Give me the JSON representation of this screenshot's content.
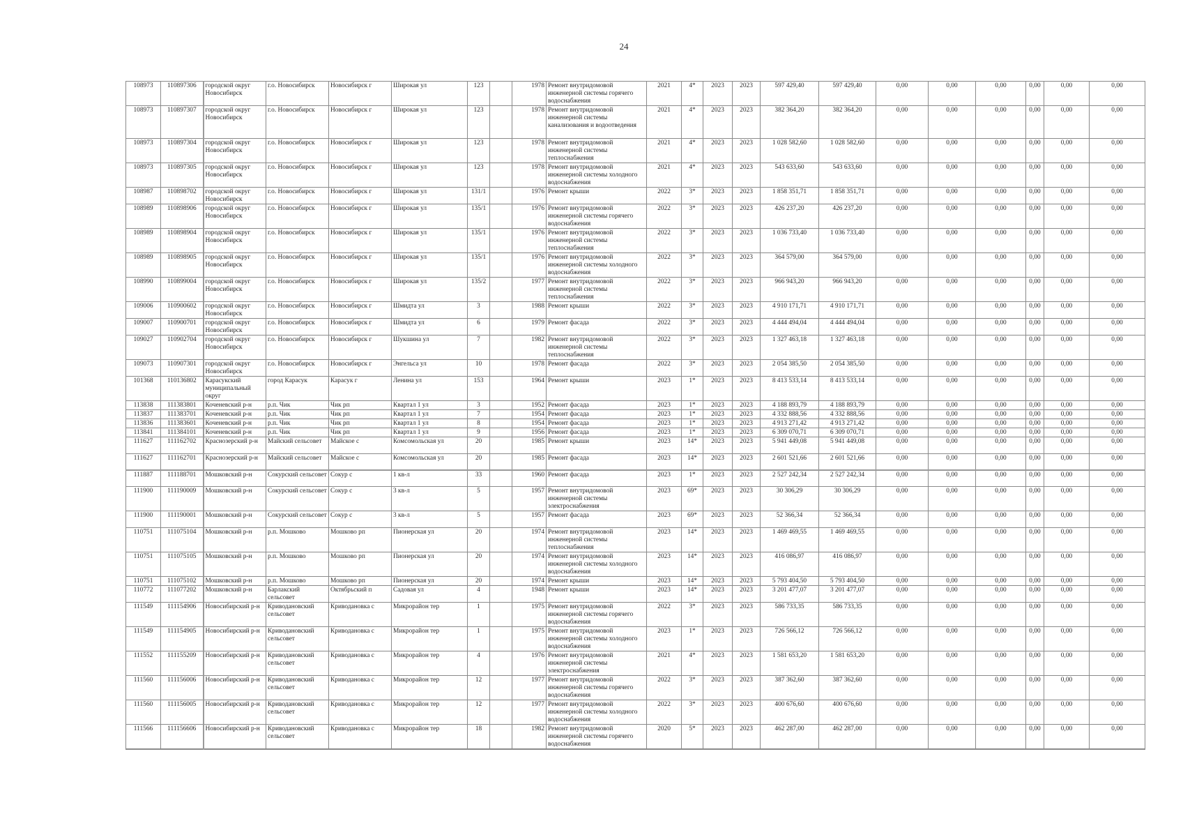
{
  "page_number": "24",
  "rows": [
    [
      "108973",
      "110897306",
      "городской округ Новосибирск",
      "г.о. Новосибирск",
      "Новосибирск г",
      "Широкая ул",
      "123",
      "",
      "1978",
      "Ремонт внутридомовой инженерной системы горячего водоснабжения",
      "2021",
      "4*",
      "2023",
      "2023",
      "597 429,40",
      "597 429,40",
      "0,00",
      "0,00",
      "0,00",
      "0,00",
      "0,00",
      "0,00"
    ],
    [
      "108973",
      "110897307",
      "городской округ Новосибирск",
      "г.о. Новосибирск",
      "Новосибирск г",
      "Широкая ул",
      "123",
      "",
      "1978",
      "Ремонт внутридомовой инженерной системы канализования и водоотведения",
      "2021",
      "4*",
      "2023",
      "2023",
      "382 364,20",
      "382 364,20",
      "0,00",
      "0,00",
      "0,00",
      "0,00",
      "0,00",
      "0,00"
    ],
    [
      "108973",
      "110897304",
      "городской округ Новосибирск",
      "г.о. Новосибирск",
      "Новосибирск г",
      "Широкая ул",
      "123",
      "",
      "1978",
      "Ремонт внутридомовой инженерной системы теплоснабжения",
      "2021",
      "4*",
      "2023",
      "2023",
      "1 028 582,60",
      "1 028 582,60",
      "0,00",
      "0,00",
      "0,00",
      "0,00",
      "0,00",
      "0,00"
    ],
    [
      "108973",
      "110897305",
      "городской округ Новосибирск",
      "г.о. Новосибирск",
      "Новосибирск г",
      "Широкая ул",
      "123",
      "",
      "1978",
      "Ремонт внутридомовой инженерной системы холодного водоснабжения",
      "2021",
      "4*",
      "2023",
      "2023",
      "543 633,60",
      "543 633,60",
      "0,00",
      "0,00",
      "0,00",
      "0,00",
      "0,00",
      "0,00"
    ],
    [
      "108987",
      "110898702",
      "городской округ Новосибирск",
      "г.о. Новосибирск",
      "Новосибирск г",
      "Широкая ул",
      "131/1",
      "",
      "1976",
      "Ремонт крыши",
      "2022",
      "3*",
      "2023",
      "2023",
      "1 858 351,71",
      "1 858 351,71",
      "0,00",
      "0,00",
      "0,00",
      "0,00",
      "0,00",
      "0,00"
    ],
    [
      "108989",
      "110898906",
      "городской округ Новосибирск",
      "г.о. Новосибирск",
      "Новосибирск г",
      "Широкая ул",
      "135/1",
      "",
      "1976",
      "Ремонт внутридомовой инженерной системы горячего водоснабжения",
      "2022",
      "3*",
      "2023",
      "2023",
      "426 237,20",
      "426 237,20",
      "0,00",
      "0,00",
      "0,00",
      "0,00",
      "0,00",
      "0,00"
    ],
    [
      "108989",
      "110898904",
      "городской округ Новосибирск",
      "г.о. Новосибирск",
      "Новосибирск г",
      "Широкая ул",
      "135/1",
      "",
      "1976",
      "Ремонт внутридомовой инженерной системы теплоснабжения",
      "2022",
      "3*",
      "2023",
      "2023",
      "1 036 733,40",
      "1 036 733,40",
      "0,00",
      "0,00",
      "0,00",
      "0,00",
      "0,00",
      "0,00"
    ],
    [
      "108989",
      "110898905",
      "городской округ Новосибирск",
      "г.о. Новосибирск",
      "Новосибирск г",
      "Широкая ул",
      "135/1",
      "",
      "1976",
      "Ремонт внутридомовой инженерной системы холодного водоснабжения",
      "2022",
      "3*",
      "2023",
      "2023",
      "364 579,00",
      "364 579,00",
      "0,00",
      "0,00",
      "0,00",
      "0,00",
      "0,00",
      "0,00"
    ],
    [
      "108990",
      "110899004",
      "городской округ Новосибирск",
      "г.о. Новосибирск",
      "Новосибирск г",
      "Широкая ул",
      "135/2",
      "",
      "1977",
      "Ремонт внутридомовой инженерной системы теплоснабжения",
      "2022",
      "3*",
      "2023",
      "2023",
      "966 943,20",
      "966 943,20",
      "0,00",
      "0,00",
      "0,00",
      "0,00",
      "0,00",
      "0,00"
    ],
    [
      "109006",
      "110900602",
      "городской округ Новосибирск",
      "г.о. Новосибирск",
      "Новосибирск г",
      "Шмидта ул",
      "3",
      "",
      "1988",
      "Ремонт крыши",
      "2022",
      "3*",
      "2023",
      "2023",
      "4 910 171,71",
      "4 910 171,71",
      "0,00",
      "0,00",
      "0,00",
      "0,00",
      "0,00",
      "0,00"
    ],
    [
      "109007",
      "110900701",
      "городской округ Новосибирск",
      "г.о. Новосибирск",
      "Новосибирск г",
      "Шмидта ул",
      "6",
      "",
      "1979",
      "Ремонт фасада",
      "2022",
      "3*",
      "2023",
      "2023",
      "4 444 494,04",
      "4 444 494,04",
      "0,00",
      "0,00",
      "0,00",
      "0,00",
      "0,00",
      "0,00"
    ],
    [
      "109027",
      "110902704",
      "городской округ Новосибирск",
      "г.о. Новосибирск",
      "Новосибирск г",
      "Шукшина ул",
      "7",
      "",
      "1982",
      "Ремонт внутридомовой инженерной системы теплоснабжения",
      "2022",
      "3*",
      "2023",
      "2023",
      "1 327 463,18",
      "1 327 463,18",
      "0,00",
      "0,00",
      "0,00",
      "0,00",
      "0,00",
      "0,00"
    ],
    [
      "109073",
      "110907301",
      "городской округ Новосибирск",
      "г.о. Новосибирск",
      "Новосибирск г",
      "Энгельса ул",
      "10",
      "",
      "1978",
      "Ремонт фасада",
      "2022",
      "3*",
      "2023",
      "2023",
      "2 054 385,50",
      "2 054 385,50",
      "0,00",
      "0,00",
      "0,00",
      "0,00",
      "0,00",
      "0,00"
    ],
    [
      "101368",
      "110136802",
      "Карасукский муниципальный округ",
      "город Карасук",
      "Карасук г",
      "Ленина ул",
      "153",
      "",
      "1964",
      "Ремонт крыши",
      "2023",
      "1*",
      "2023",
      "2023",
      "8 413 533,14",
      "8 413 533,14",
      "0,00",
      "0,00",
      "0,00",
      "0,00",
      "0,00",
      "0,00"
    ],
    [
      "113838",
      "111383801",
      "Коченевский р-н",
      "р.п. Чик",
      "Чик рп",
      "Квартал 1 ул",
      "3",
      "",
      "1952",
      "Ремонт фасада",
      "2023",
      "1*",
      "2023",
      "2023",
      "4 188 893,79",
      "4 188 893,79",
      "0,00",
      "0,00",
      "0,00",
      "0,00",
      "0,00",
      "0,00"
    ],
    [
      "113837",
      "111383701",
      "Коченевский р-н",
      "р.п. Чик",
      "Чик рп",
      "Квартал 1 ул",
      "7",
      "",
      "1954",
      "Ремонт фасада",
      "2023",
      "1*",
      "2023",
      "2023",
      "4 332 888,56",
      "4 332 888,56",
      "0,00",
      "0,00",
      "0,00",
      "0,00",
      "0,00",
      "0,00"
    ],
    [
      "113836",
      "111383601",
      "Коченевский р-н",
      "р.п. Чик",
      "Чик рп",
      "Квартал 1 ул",
      "8",
      "",
      "1954",
      "Ремонт фасада",
      "2023",
      "1*",
      "2023",
      "2023",
      "4 913 271,42",
      "4 913 271,42",
      "0,00",
      "0,00",
      "0,00",
      "0,00",
      "0,00",
      "0,00"
    ],
    [
      "113841",
      "111384101",
      "Коченевский р-н",
      "р.п. Чик",
      "Чик рп",
      "Квартал 1 ул",
      "9",
      "",
      "1956",
      "Ремонт фасада",
      "2023",
      "1*",
      "2023",
      "2023",
      "6 309 070,71",
      "6 309 070,71",
      "0,00",
      "0,00",
      "0,00",
      "0,00",
      "0,00",
      "0,00"
    ],
    [
      "111627",
      "111162702",
      "Краснозерский р-н",
      "Майский сельсовет",
      "Майское с",
      "Комсомольская ул",
      "20",
      "",
      "1985",
      "Ремонт крыши",
      "2023",
      "14*",
      "2023",
      "2023",
      "5 941 449,08",
      "5 941 449,08",
      "0,00",
      "0,00",
      "0,00",
      "0,00",
      "0,00",
      "0,00"
    ],
    [
      "111627",
      "111162701",
      "Краснозерский р-н",
      "Майский сельсовет",
      "Майское с",
      "Комсомольская ул",
      "20",
      "",
      "1985",
      "Ремонт фасада",
      "2023",
      "14*",
      "2023",
      "2023",
      "2 601 521,66",
      "2 601 521,66",
      "0,00",
      "0,00",
      "0,00",
      "0,00",
      "0,00",
      "0,00"
    ],
    [
      "111887",
      "111188701",
      "Мошковский р-н",
      "Сокурский сельсовет",
      "Сокур с",
      "1 кв-л",
      "33",
      "",
      "1960",
      "Ремонт фасада",
      "2023",
      "1*",
      "2023",
      "2023",
      "2 527 242,34",
      "2 527 242,34",
      "0,00",
      "0,00",
      "0,00",
      "0,00",
      "0,00",
      "0,00"
    ],
    [
      "111900",
      "111190009",
      "Мошковский р-н",
      "Сокурский сельсовет",
      "Сокур с",
      "3 кв-л",
      "5",
      "",
      "1957",
      "Ремонт внутридомовой инженерной системы электроснабжения",
      "2023",
      "69*",
      "2023",
      "2023",
      "30 306,29",
      "30 306,29",
      "0,00",
      "0,00",
      "0,00",
      "0,00",
      "0,00",
      "0,00"
    ],
    [
      "111900",
      "111190001",
      "Мошковский р-н",
      "Сокурский сельсовет",
      "Сокур с",
      "3 кв-л",
      "5",
      "",
      "1957",
      "Ремонт фасада",
      "2023",
      "69*",
      "2023",
      "2023",
      "52 366,34",
      "52 366,34",
      "0,00",
      "0,00",
      "0,00",
      "0,00",
      "0,00",
      "0,00"
    ],
    [
      "110751",
      "111075104",
      "Мошковский р-н",
      "р.п. Мошково",
      "Мошково рп",
      "Пионерская ул",
      "20",
      "",
      "1974",
      "Ремонт внутридомовой инженерной системы теплоснабжения",
      "2023",
      "14*",
      "2023",
      "2023",
      "1 469 469,55",
      "1 469 469,55",
      "0,00",
      "0,00",
      "0,00",
      "0,00",
      "0,00",
      "0,00"
    ],
    [
      "110751",
      "111075105",
      "Мошковский р-н",
      "р.п. Мошково",
      "Мошково рп",
      "Пионерская ул",
      "20",
      "",
      "1974",
      "Ремонт внутридомовой инженерной системы холодного водоснабжения",
      "2023",
      "14*",
      "2023",
      "2023",
      "416 086,97",
      "416 086,97",
      "0,00",
      "0,00",
      "0,00",
      "0,00",
      "0,00",
      "0,00"
    ],
    [
      "110751",
      "111075102",
      "Мошковский р-н",
      "р.п. Мошково",
      "Мошково рп",
      "Пионерская ул",
      "20",
      "",
      "1974",
      "Ремонт крыши",
      "2023",
      "14*",
      "2023",
      "2023",
      "5 793 404,50",
      "5 793 404,50",
      "0,00",
      "0,00",
      "0,00",
      "0,00",
      "0,00",
      "0,00"
    ],
    [
      "110772",
      "111077202",
      "Мошковский р-н",
      "Барлакский сельсовет",
      "Октябрьский п",
      "Садовая ул",
      "4",
      "",
      "1948",
      "Ремонт крыши",
      "2023",
      "14*",
      "2023",
      "2023",
      "3 201 477,07",
      "3 201 477,07",
      "0,00",
      "0,00",
      "0,00",
      "0,00",
      "0,00",
      "0,00"
    ],
    [
      "111549",
      "111154906",
      "Новосибирский р-н",
      "Криводановский сельсовет",
      "Криводановка с",
      "Микрорайон тер",
      "1",
      "",
      "1975",
      "Ремонт внутридомовой инженерной системы горячего водоснабжения",
      "2022",
      "3*",
      "2023",
      "2023",
      "586 733,35",
      "586 733,35",
      "0,00",
      "0,00",
      "0,00",
      "0,00",
      "0,00",
      "0,00"
    ],
    [
      "111549",
      "111154905",
      "Новосибирский р-н",
      "Криводановский сельсовет",
      "Криводановка с",
      "Микрорайон тер",
      "1",
      "",
      "1975",
      "Ремонт внутридомовой инженерной системы холодного водоснабжения",
      "2023",
      "1*",
      "2023",
      "2023",
      "726 566,12",
      "726 566,12",
      "0,00",
      "0,00",
      "0,00",
      "0,00",
      "0,00",
      "0,00"
    ],
    [
      "111552",
      "111155209",
      "Новосибирский р-н",
      "Криводановский сельсовет",
      "Криводановка с",
      "Микрорайон тер",
      "4",
      "",
      "1976",
      "Ремонт внутридомовой инженерной системы электроснабжения",
      "2021",
      "4*",
      "2023",
      "2023",
      "1 581 653,20",
      "1 581 653,20",
      "0,00",
      "0,00",
      "0,00",
      "0,00",
      "0,00",
      "0,00"
    ],
    [
      "111560",
      "111156006",
      "Новосибирский р-н",
      "Криводановский сельсовет",
      "Криводановка с",
      "Микрорайон тер",
      "12",
      "",
      "1977",
      "Ремонт внутридомовой инженерной системы горячего водоснабжения",
      "2022",
      "3*",
      "2023",
      "2023",
      "387 362,60",
      "387 362,60",
      "0,00",
      "0,00",
      "0,00",
      "0,00",
      "0,00",
      "0,00"
    ],
    [
      "111560",
      "111156005",
      "Новосибирский р-н",
      "Криводановский сельсовет",
      "Криводановка с",
      "Микрорайон тер",
      "12",
      "",
      "1977",
      "Ремонт внутридомовой инженерной системы холодного водоснабжения",
      "2022",
      "3*",
      "2023",
      "2023",
      "400 676,60",
      "400 676,60",
      "0,00",
      "0,00",
      "0,00",
      "0,00",
      "0,00",
      "0,00"
    ],
    [
      "111566",
      "111156606",
      "Новосибирский р-н",
      "Криводановский сельсовет",
      "Криводановка с",
      "Микрорайон тер",
      "18",
      "",
      "1982",
      "Ремонт внутридомовой инженерной системы горячего водоснабжения",
      "2020",
      "5*",
      "2023",
      "2023",
      "462 287,00",
      "462 287,00",
      "0,00",
      "0,00",
      "0,00",
      "0,00",
      "0,00",
      "0,00"
    ]
  ]
}
